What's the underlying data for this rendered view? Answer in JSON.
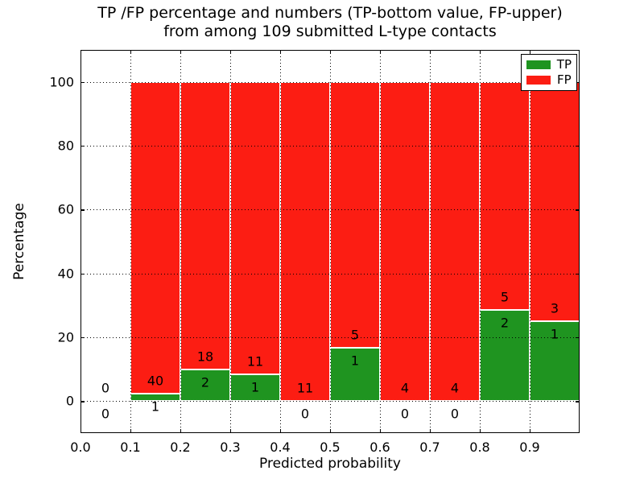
{
  "figure": {
    "title_line1": "TP /FP percentage and numbers (TP-bottom value, FP-upper)",
    "title_line2": "from among 109 submitted L-type contacts"
  },
  "axes": {
    "xlabel": "Predicted probability",
    "ylabel": "Percentage"
  },
  "legend": {
    "items": [
      {
        "label": "TP",
        "color": "#1f9420"
      },
      {
        "label": "FP",
        "color": "#fc1d13"
      }
    ]
  },
  "chart_data": {
    "type": "bar",
    "stacked": true,
    "title": "TP /FP percentage and numbers (TP-bottom value, FP-upper) from among 109 submitted L-type contacts",
    "xlabel": "Predicted probability",
    "ylabel": "Percentage",
    "xlim": [
      0.0,
      1.0
    ],
    "ylim": [
      -10,
      110
    ],
    "grid": "dotted",
    "grid_above_bars": true,
    "legend_position": "upper right",
    "x_tick_labels": [
      "0.0",
      "0.1",
      "0.2",
      "0.3",
      "0.4",
      "0.5",
      "0.6",
      "0.7",
      "0.8",
      "0.9"
    ],
    "y_tick_values": [
      0,
      20,
      40,
      60,
      80,
      100
    ],
    "series": [
      {
        "name": "TP",
        "color": "#1f9420"
      },
      {
        "name": "FP",
        "color": "#fc1d13"
      }
    ],
    "bins": [
      {
        "bin_start": 0.0,
        "bin_end": 0.1,
        "tp_count": 0,
        "fp_count": 0,
        "tp_pct": 0,
        "fp_pct": 0
      },
      {
        "bin_start": 0.1,
        "bin_end": 0.2,
        "tp_count": 1,
        "fp_count": 40,
        "tp_pct": 2.439,
        "fp_pct": 97.561
      },
      {
        "bin_start": 0.2,
        "bin_end": 0.3,
        "tp_count": 2,
        "fp_count": 18,
        "tp_pct": 10.0,
        "fp_pct": 90.0
      },
      {
        "bin_start": 0.3,
        "bin_end": 0.4,
        "tp_count": 1,
        "fp_count": 11,
        "tp_pct": 8.333,
        "fp_pct": 91.667
      },
      {
        "bin_start": 0.4,
        "bin_end": 0.5,
        "tp_count": 0,
        "fp_count": 11,
        "tp_pct": 0,
        "fp_pct": 100.0
      },
      {
        "bin_start": 0.5,
        "bin_end": 0.6,
        "tp_count": 1,
        "fp_count": 5,
        "tp_pct": 16.667,
        "fp_pct": 83.333
      },
      {
        "bin_start": 0.6,
        "bin_end": 0.7,
        "tp_count": 0,
        "fp_count": 4,
        "tp_pct": 0,
        "fp_pct": 100.0
      },
      {
        "bin_start": 0.7,
        "bin_end": 0.8,
        "tp_count": 0,
        "fp_count": 4,
        "tp_pct": 0,
        "fp_pct": 100.0
      },
      {
        "bin_start": 0.8,
        "bin_end": 0.9,
        "tp_count": 2,
        "fp_count": 5,
        "tp_pct": 28.571,
        "fp_pct": 71.429
      },
      {
        "bin_start": 0.9,
        "bin_end": 1.0,
        "tp_count": 1,
        "fp_count": 3,
        "tp_pct": 25.0,
        "fp_pct": 75.0
      }
    ]
  }
}
